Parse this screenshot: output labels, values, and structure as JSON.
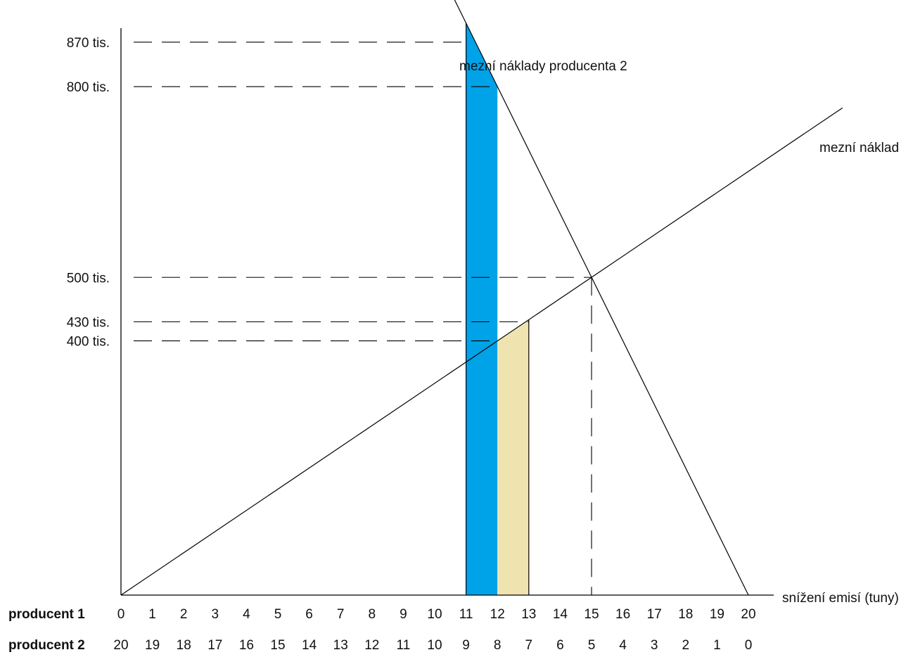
{
  "chart_data": {
    "type": "line",
    "x_producent1": [
      0,
      1,
      2,
      3,
      4,
      5,
      6,
      7,
      8,
      9,
      10,
      11,
      12,
      13,
      14,
      15,
      16,
      17,
      18,
      19,
      20
    ],
    "x_producent2": [
      20,
      19,
      18,
      17,
      16,
      15,
      14,
      13,
      12,
      11,
      10,
      9,
      8,
      7,
      6,
      5,
      4,
      3,
      2,
      1,
      0
    ],
    "row_labels": {
      "producent1": "producent 1",
      "producent2": "producent 2"
    },
    "xlabel": "snížení emisí (tuny)",
    "xlim": [
      0,
      20
    ],
    "y_levels": [
      {
        "value": 870,
        "label": "870 tis."
      },
      {
        "value": 800,
        "label": "800 tis."
      },
      {
        "value": 500,
        "label": "500 tis."
      },
      {
        "value": 430,
        "label": "430 tis."
      },
      {
        "value": 400,
        "label": "400 tis."
      }
    ],
    "series": [
      {
        "name": "mezní náklady producenta 2",
        "x": [
          20,
          15,
          12,
          11
        ],
        "y": [
          0,
          500,
          800,
          870
        ],
        "color": "#000000"
      },
      {
        "name": "mezní náklad",
        "x": [
          0,
          15,
          13
        ],
        "y": [
          0,
          500,
          430
        ],
        "color": "#000000"
      }
    ],
    "shaded_areas": [
      {
        "x_from": 11,
        "x_to": 12,
        "under": "mezní náklady producenta 2",
        "color": "#00a2e8"
      },
      {
        "x_from": 12,
        "x_to": 13,
        "under": "mezní náklad",
        "color": "#efe4b0"
      }
    ],
    "equilibrium": {
      "x": 15,
      "y": 500
    }
  }
}
